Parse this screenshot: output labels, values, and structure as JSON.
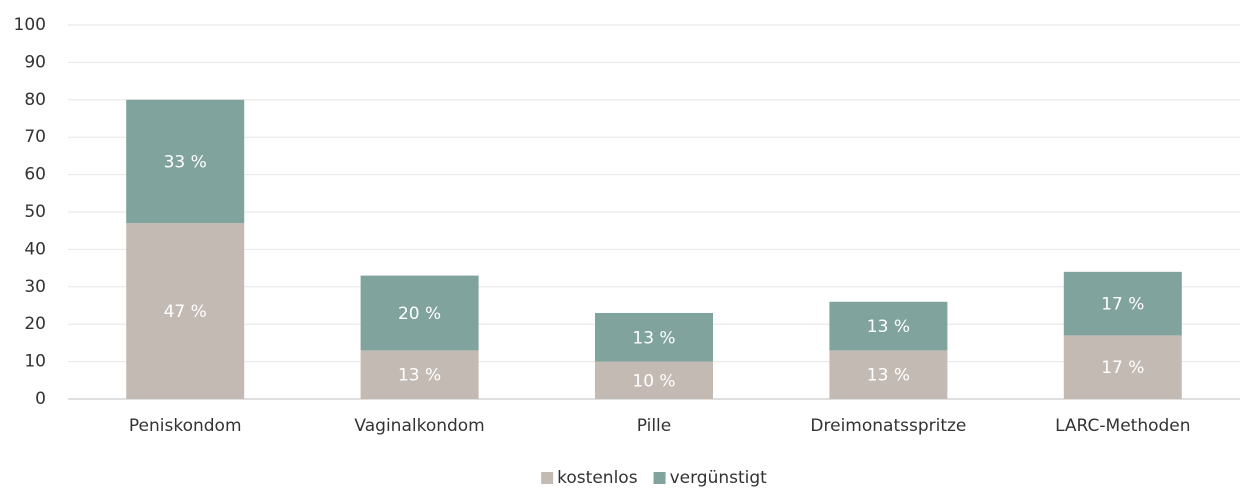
{
  "chart_data": {
    "type": "stacked-bar",
    "categories": [
      "Peniskondom",
      "Vaginalkondom",
      "Pille",
      "Dreimonatsspritze",
      "LARC-Methoden"
    ],
    "series": [
      {
        "name": "kostenlos",
        "color": "#c4bab4",
        "values": [
          47,
          13,
          10,
          13,
          17
        ],
        "value_labels": [
          "47 %",
          "13 %",
          "10 %",
          "13 %",
          "17 %"
        ]
      },
      {
        "name": "vergünstigt",
        "color": "#80a39e",
        "values": [
          33,
          20,
          13,
          13,
          17
        ],
        "value_labels": [
          "33 %",
          "20 %",
          "13 %",
          "13 %",
          "17 %"
        ]
      }
    ],
    "ylim": [
      0,
      100
    ],
    "yticks": [
      0,
      10,
      20,
      30,
      40,
      50,
      60,
      70,
      80,
      90,
      100
    ],
    "grid": true,
    "legend": "bottom"
  }
}
